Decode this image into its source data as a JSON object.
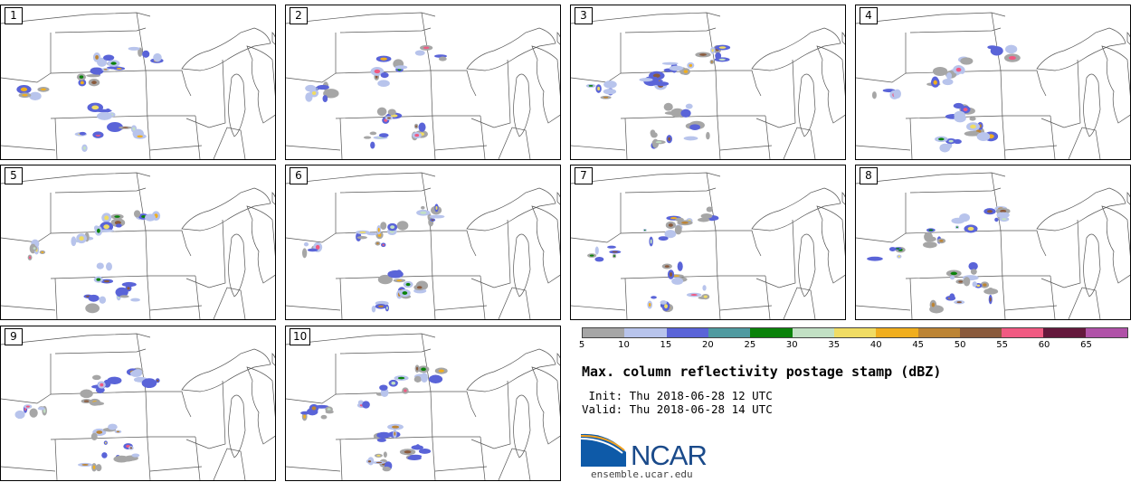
{
  "panels": [
    {
      "label": "1",
      "seed": 11
    },
    {
      "label": "2",
      "seed": 23
    },
    {
      "label": "3",
      "seed": 37
    },
    {
      "label": "4",
      "seed": 41
    },
    {
      "label": "5",
      "seed": 53
    },
    {
      "label": "6",
      "seed": 67
    },
    {
      "label": "7",
      "seed": 71
    },
    {
      "label": "8",
      "seed": 83
    },
    {
      "label": "9",
      "seed": 97
    },
    {
      "label": "10",
      "seed": 101
    }
  ],
  "colorbar": {
    "ticks": [
      "5",
      "10",
      "15",
      "20",
      "25",
      "30",
      "35",
      "40",
      "45",
      "50",
      "55",
      "60",
      "65"
    ],
    "colors": [
      "#a6a6a6",
      "#b8c4ec",
      "#5a64d8",
      "#4f9aa0",
      "#0a820a",
      "#c2e0c4",
      "#f0dc64",
      "#f0ae1e",
      "#bc8434",
      "#8a5a3c",
      "#f05a82",
      "#64183c",
      "#b052a8"
    ]
  },
  "title": "Max. column reflectivity postage stamp (dBZ)",
  "init": " Init: Thu 2018-06-28 12 UTC",
  "valid": "Valid: Thu 2018-06-28 14 UTC",
  "logo": {
    "wordmark": "NCAR",
    "url": "ensemble.ucar.edu"
  }
}
